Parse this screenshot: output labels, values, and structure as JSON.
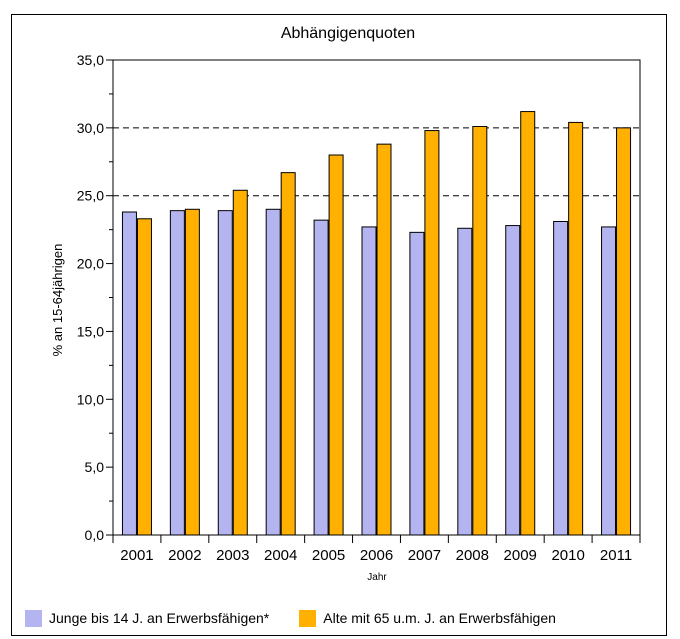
{
  "chart_data": {
    "type": "bar",
    "title": "Abhängigenquoten",
    "xlabel": "Jahr",
    "ylabel": "% an 15-64jährigen",
    "categories": [
      "2001",
      "2002",
      "2003",
      "2004",
      "2005",
      "2006",
      "2007",
      "2008",
      "2009",
      "2010",
      "2011"
    ],
    "ylim": [
      0,
      35
    ],
    "yticks": [
      "0,0",
      "5,0",
      "10,0",
      "15,0",
      "20,0",
      "25,0",
      "30,0",
      "35,0"
    ],
    "grid": "dashed horizontal at 25 and 30",
    "legend_position": "bottom",
    "series": [
      {
        "name": "Junge bis 14 J. an Erwerbsfähigen*",
        "color": "#b4b4f0",
        "values": [
          23.8,
          23.9,
          23.9,
          24.0,
          23.2,
          22.7,
          22.3,
          22.6,
          22.8,
          23.1,
          22.7
        ]
      },
      {
        "name": "Alte mit 65 u.m. J. an Erwerbsfähigen",
        "color": "#ffb000",
        "values": [
          23.3,
          24.0,
          25.4,
          26.7,
          28.0,
          28.8,
          29.8,
          30.1,
          31.2,
          30.4,
          30.0
        ]
      }
    ]
  }
}
